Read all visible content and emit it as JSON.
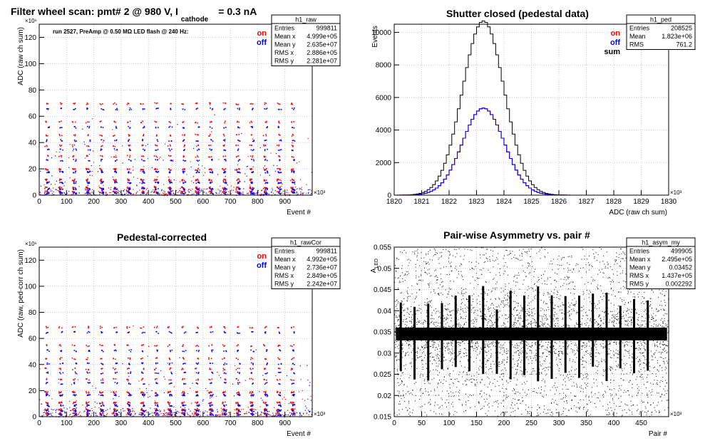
{
  "colors": {
    "on": "#ff0000",
    "off": "#0000ff",
    "sum": "#000000",
    "grid": "#c8c8c8",
    "frame": "#000000"
  },
  "chart_data": [
    {
      "id": "raw",
      "type": "scatter",
      "title": "Filter wheel scan: pmt#   2 @   980 V, I",
      "title_sub": "cathode",
      "title_tail": "= 0.3 nA",
      "annotation": "run 2527, PreAmp @ 0.50 MΩ  LED flash @  240 Hz:",
      "xlabel": "Event #",
      "ylabel": "ADC (raw ch sum)",
      "x_exp": "×10³",
      "y_exp": "×10⁶",
      "xlim": [
        0,
        1000
      ],
      "ylim": [
        0,
        130
      ],
      "xticks": [
        0,
        100,
        200,
        300,
        400,
        500,
        600,
        700,
        800,
        900
      ],
      "yticks": [
        0,
        20,
        40,
        60,
        80,
        100,
        120
      ],
      "legend": [
        "on",
        "off"
      ],
      "stats": {
        "name": "h1_raw",
        "rows": [
          [
            "Entries",
            "999811"
          ],
          [
            "Mean x",
            "4.999e+05"
          ],
          [
            "Mean y",
            "2.635e+07"
          ],
          [
            "RMS x",
            "2.886e+05"
          ],
          [
            "RMS y",
            "2.281e+07"
          ]
        ]
      },
      "series": [
        {
          "name": "on",
          "x": [
            25,
            75,
            125,
            175,
            225,
            275,
            325,
            375,
            425,
            475,
            525,
            575,
            625,
            675,
            725,
            775,
            825,
            875,
            925
          ],
          "levels": [
            70,
            56,
            46,
            38,
            30,
            20,
            12,
            6,
            3
          ]
        },
        {
          "name": "off",
          "x": [
            25,
            75,
            125,
            175,
            225,
            275,
            325,
            375,
            425,
            475,
            525,
            575,
            625,
            675,
            725,
            775,
            825,
            875,
            925
          ],
          "levels": [
            66,
            52,
            42,
            35,
            27,
            18,
            10,
            5,
            2
          ]
        }
      ]
    },
    {
      "id": "ped",
      "type": "line",
      "title": "Shutter closed (pedestal data)",
      "xlabel": "ADC (raw ch sum)",
      "ylabel": "Events",
      "x_exp": "×10³",
      "xlim": [
        1820,
        1830
      ],
      "ylim": [
        0,
        10500
      ],
      "xticks": [
        1820,
        1821,
        1822,
        1823,
        1824,
        1825,
        1826,
        1827,
        1828,
        1829,
        1830
      ],
      "yticks": [
        0,
        2000,
        4000,
        6000,
        8000,
        10000
      ],
      "legend": [
        "on",
        "off",
        "sum"
      ],
      "stats": {
        "name": "h1_ped",
        "rows": [
          [
            "Entries",
            "208525"
          ],
          [
            "Mean",
            "1.823e+06"
          ],
          [
            "RMS",
            "761.2"
          ]
        ]
      },
      "series": [
        {
          "name": "sum",
          "mean": 1823.25,
          "sigma": 0.76,
          "peak": 10700
        },
        {
          "name": "on",
          "mean": 1823.25,
          "sigma": 0.76,
          "peak": 5350
        },
        {
          "name": "off",
          "mean": 1823.25,
          "sigma": 0.76,
          "peak": 5350
        }
      ]
    },
    {
      "id": "cor",
      "type": "scatter",
      "title": "Pedestal-corrected",
      "xlabel": "Event #",
      "ylabel": "ADC (raw, ped-corr ch sum)",
      "x_exp": "×10³",
      "y_exp": "×10⁶",
      "xlim": [
        0,
        1000
      ],
      "ylim": [
        0,
        130
      ],
      "xticks": [
        0,
        100,
        200,
        300,
        400,
        500,
        600,
        700,
        800,
        900
      ],
      "yticks": [
        0,
        20,
        40,
        60,
        80,
        100,
        120
      ],
      "legend": [
        "on",
        "off"
      ],
      "stats": {
        "name": "h1_rawCor",
        "rows": [
          [
            "Entries",
            "999811"
          ],
          [
            "Mean x",
            "4.992e+05"
          ],
          [
            "Mean y",
            "2.736e+07"
          ],
          [
            "RMS x",
            "2.849e+05"
          ],
          [
            "RMS y",
            "2.242e+07"
          ]
        ]
      },
      "series": [
        {
          "name": "on",
          "x": [
            25,
            75,
            125,
            175,
            225,
            275,
            325,
            375,
            425,
            475,
            525,
            575,
            625,
            675,
            725,
            775,
            825,
            875,
            925
          ],
          "levels": [
            69,
            55,
            45,
            37,
            29,
            19,
            11,
            6,
            3
          ]
        },
        {
          "name": "off",
          "x": [
            25,
            75,
            125,
            175,
            225,
            275,
            325,
            375,
            425,
            475,
            525,
            575,
            625,
            675,
            725,
            775,
            825,
            875,
            925
          ],
          "levels": [
            65,
            51,
            41,
            34,
            26,
            17,
            9,
            5,
            2
          ]
        }
      ]
    },
    {
      "id": "asym",
      "type": "scatter",
      "title": "Pair-wise Asymmetry vs. pair #",
      "xlabel": "Pair #",
      "ylabel": "A",
      "ylabel_sub": "LED",
      "x_exp": "×10³",
      "xlim": [
        0,
        500
      ],
      "ylim": [
        0.015,
        0.055
      ],
      "xticks": [
        0,
        50,
        100,
        150,
        200,
        250,
        300,
        350,
        400,
        450
      ],
      "yticks": [
        0.015,
        0.02,
        0.025,
        0.03,
        0.035,
        0.04,
        0.045,
        0.05,
        0.055
      ],
      "stats": {
        "name": "h1_asym_my",
        "rows": [
          [
            "Entries",
            "499905"
          ],
          [
            "Mean x",
            "2.495e+05"
          ],
          [
            "Mean y",
            "0.03452"
          ],
          [
            "RMS x",
            "1.437e+05"
          ],
          [
            "RMS y",
            "0.002292"
          ]
        ]
      },
      "series": [
        {
          "name": "",
          "center": 0.0345,
          "band": 0.0015,
          "spike_x": [
            12,
            37,
            62,
            87,
            112,
            137,
            162,
            187,
            212,
            237,
            262,
            287,
            312,
            337,
            362,
            387,
            412,
            437,
            462
          ]
        }
      ]
    }
  ]
}
